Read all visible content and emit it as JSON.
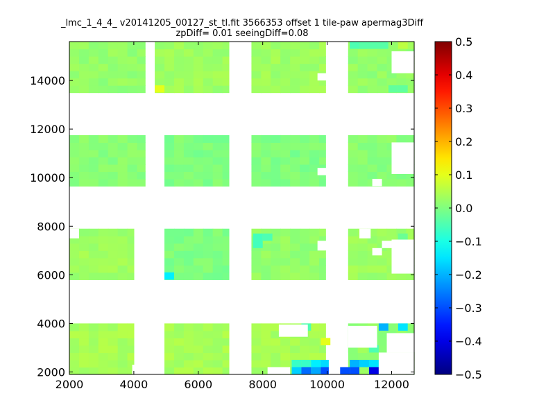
{
  "chart_data": {
    "type": "heatmap",
    "title_line1": "_lmc_1_4_4_ v20141205_00127_st_tl.fit 3566353 offset 1 tile-paw apermag3Diff",
    "title_line2": "zpDiff= 0.01 seeingDiff=0.08",
    "xlabel": "",
    "ylabel": "",
    "xlim": [
      2000,
      12700
    ],
    "ylim": [
      1900,
      15600
    ],
    "xticks": [
      "2000",
      "4000",
      "6000",
      "8000",
      "10000",
      "12000"
    ],
    "yticks": [
      "2000",
      "4000",
      "6000",
      "8000",
      "10000",
      "12000",
      "14000"
    ],
    "colorbar": {
      "colormap": "jet",
      "range": [
        -0.5,
        0.5
      ],
      "ticks": [
        "0.5",
        "0.4",
        "0.3",
        "0.2",
        "0.1",
        "0.0",
        "−0.1",
        "−0.2",
        "−0.3",
        "−0.4",
        "−0.5"
      ]
    },
    "cell_size": [
      300,
      300
    ],
    "detector_blocks": [
      {
        "x0": 2000,
        "x1": 4350,
        "y0": 13500,
        "y1": 15600,
        "value": 0.02
      },
      {
        "x0": 4650,
        "x1": 6950,
        "y0": 13500,
        "y1": 15600,
        "value": 0.03
      },
      {
        "x0": 7650,
        "x1": 9950,
        "y0": 13500,
        "y1": 15600,
        "value": 0.03
      },
      {
        "x0": 10650,
        "x1": 12700,
        "y0": 13500,
        "y1": 15600,
        "value": 0.02
      },
      {
        "x0": 2000,
        "x1": 4350,
        "y0": 9650,
        "y1": 11750,
        "value": 0.01
      },
      {
        "x0": 4950,
        "x1": 6950,
        "y0": 9650,
        "y1": 11750,
        "value": 0.0
      },
      {
        "x0": 7650,
        "x1": 9950,
        "y0": 9650,
        "y1": 11750,
        "value": 0.0
      },
      {
        "x0": 10650,
        "x1": 12700,
        "y0": 9650,
        "y1": 11750,
        "value": 0.01
      },
      {
        "x0": 2000,
        "x1": 4000,
        "y0": 5800,
        "y1": 7900,
        "value": 0.03
      },
      {
        "x0": 4950,
        "x1": 6950,
        "y0": 5800,
        "y1": 7900,
        "value": 0.0
      },
      {
        "x0": 7650,
        "x1": 9950,
        "y0": 5800,
        "y1": 7900,
        "value": 0.02
      },
      {
        "x0": 10650,
        "x1": 12700,
        "y0": 5800,
        "y1": 7900,
        "value": 0.03
      },
      {
        "x0": 2000,
        "x1": 4000,
        "y0": 1900,
        "y1": 4000,
        "value": 0.04
      },
      {
        "x0": 4950,
        "x1": 6950,
        "y0": 1900,
        "y1": 4000,
        "value": 0.04
      },
      {
        "x0": 7650,
        "x1": 9950,
        "y0": 1900,
        "y1": 4000,
        "value": 0.04
      },
      {
        "x0": 10650,
        "x1": 12700,
        "y0": 1900,
        "y1": 4000,
        "value": 0.02
      }
    ],
    "outlier_cells": [
      {
        "x": 10700,
        "y": 15300,
        "value": -0.05
      },
      {
        "x": 11000,
        "y": 15300,
        "value": -0.04
      },
      {
        "x": 11300,
        "y": 15300,
        "value": -0.04
      },
      {
        "x": 11600,
        "y": 15300,
        "value": -0.04
      },
      {
        "x": 11900,
        "y": 15300,
        "value": 0.02
      },
      {
        "x": 12200,
        "y": 15300,
        "value": 0.06
      },
      {
        "x": 4650,
        "y": 13500,
        "value": 0.1
      },
      {
        "x": 11900,
        "y": 13500,
        "value": -0.03
      },
      {
        "x": 12200,
        "y": 13500,
        "value": -0.03
      },
      {
        "x": 7700,
        "y": 7100,
        "value": -0.06
      },
      {
        "x": 7700,
        "y": 7400,
        "value": -0.06
      },
      {
        "x": 8000,
        "y": 7400,
        "value": -0.05
      },
      {
        "x": 12200,
        "y": 7400,
        "value": -0.02
      },
      {
        "x": 4950,
        "y": 5800,
        "value": -0.14
      },
      {
        "x": 9200,
        "y": 3700,
        "value": -0.05
      },
      {
        "x": 9800,
        "y": 3100,
        "value": 0.1
      },
      {
        "x": 11300,
        "y": 2800,
        "value": -0.05
      },
      {
        "x": 11600,
        "y": 3700,
        "value": -0.2
      },
      {
        "x": 12200,
        "y": 3700,
        "value": -0.15
      },
      {
        "x": 8900,
        "y": 1900,
        "value": -0.17
      },
      {
        "x": 9200,
        "y": 1900,
        "value": -0.27
      },
      {
        "x": 9500,
        "y": 1900,
        "value": -0.21
      },
      {
        "x": 9800,
        "y": 1900,
        "value": -0.3
      },
      {
        "x": 8900,
        "y": 2200,
        "value": -0.07
      },
      {
        "x": 9200,
        "y": 2200,
        "value": -0.07
      },
      {
        "x": 9500,
        "y": 2200,
        "value": -0.14
      },
      {
        "x": 9800,
        "y": 2200,
        "value": -0.16
      },
      {
        "x": 10400,
        "y": 1900,
        "value": -0.3
      },
      {
        "x": 10700,
        "y": 1900,
        "value": -0.3
      },
      {
        "x": 10700,
        "y": 2200,
        "value": -0.2
      },
      {
        "x": 11000,
        "y": 2200,
        "value": -0.17
      },
      {
        "x": 11300,
        "y": 2200,
        "value": -0.15
      },
      {
        "x": 11300,
        "y": 1900,
        "value": -0.4
      }
    ],
    "missing_cells": [
      {
        "x": 12000,
        "y": 14300,
        "w": 700,
        "h": 900
      },
      {
        "x": 9700,
        "y": 14000,
        "w": 300,
        "h": 300
      },
      {
        "x": 12000,
        "y": 10150,
        "w": 700,
        "h": 1300
      },
      {
        "x": 9700,
        "y": 10100,
        "w": 300,
        "h": 300
      },
      {
        "x": 11400,
        "y": 9650,
        "w": 300,
        "h": 300
      },
      {
        "x": 2000,
        "y": 7500,
        "w": 300,
        "h": 400
      },
      {
        "x": 9700,
        "y": 7000,
        "w": 300,
        "h": 400
      },
      {
        "x": 11400,
        "y": 6800,
        "w": 300,
        "h": 300
      },
      {
        "x": 11700,
        "y": 7100,
        "w": 300,
        "h": 300
      },
      {
        "x": 12000,
        "y": 6050,
        "w": 700,
        "h": 1400
      },
      {
        "x": 11000,
        "y": 7500,
        "w": 350,
        "h": 400
      },
      {
        "x": 8500,
        "y": 3450,
        "w": 900,
        "h": 500
      },
      {
        "x": 10650,
        "y": 3000,
        "w": 900,
        "h": 900
      },
      {
        "x": 11850,
        "y": 2800,
        "w": 900,
        "h": 800
      },
      {
        "x": 11600,
        "y": 1900,
        "w": 1100,
        "h": 900
      },
      {
        "x": 8150,
        "y": 1900,
        "w": 700,
        "h": 300
      },
      {
        "x": 10050,
        "y": 1900,
        "w": 350,
        "h": 600
      },
      {
        "x": 10050,
        "y": 2500,
        "w": 600,
        "h": 300
      },
      {
        "x": 3950,
        "y": 1900,
        "w": 400,
        "h": 400
      },
      {
        "x": 4350,
        "y": 1900,
        "w": 300,
        "h": 400
      }
    ]
  }
}
